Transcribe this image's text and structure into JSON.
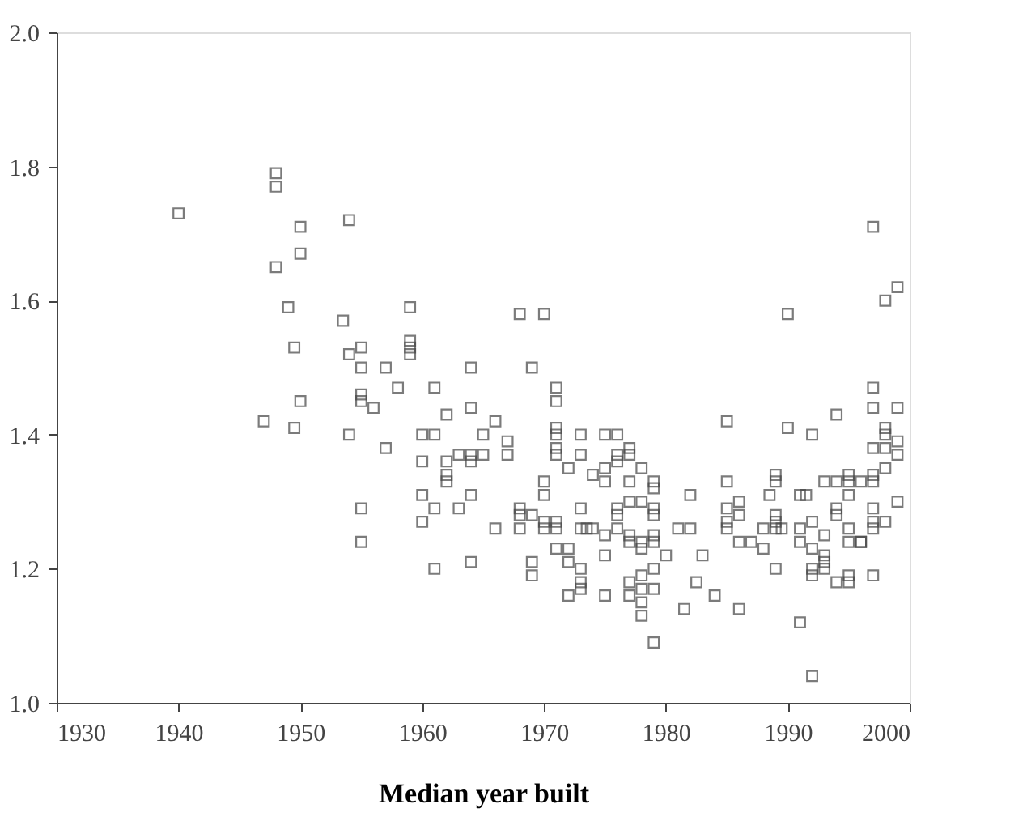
{
  "chart_data": {
    "type": "scatter",
    "xlabel": "Median year built",
    "marker": "square",
    "grid": false,
    "legend": false,
    "xlim": [
      1930,
      2000
    ],
    "ylim": [
      1.0,
      2.0
    ],
    "xticks": [
      1930,
      1940,
      1950,
      1960,
      1970,
      1980,
      1990,
      2000
    ],
    "yticks": [
      {
        "value": 1.0,
        "label": "1.0"
      },
      {
        "value": 1.2,
        "label": "1.2"
      },
      {
        "value": 1.4,
        "label": "1.4"
      },
      {
        "value": 1.6,
        "label": "1.6"
      },
      {
        "value": 1.8,
        "label": "1.8"
      },
      {
        "value": 2.0,
        "label": "2.0"
      }
    ],
    "series": [
      {
        "color": "#444444",
        "x": [
          1940,
          1948,
          1948,
          1948,
          1949,
          1949.5,
          1950,
          1950,
          1950,
          1947,
          1949.5,
          1954,
          1953.5,
          1954,
          1955,
          1955,
          1954,
          1955,
          1955,
          1956,
          1955,
          1955,
          1957,
          1958,
          1957,
          1959,
          1959,
          1959,
          1959,
          1961,
          1960,
          1961,
          1960,
          1960,
          1960,
          1961,
          1961,
          1962,
          1962,
          1962,
          1962,
          1963,
          1963,
          1964,
          1964,
          1964,
          1964,
          1964,
          1964,
          1965,
          1965,
          1966,
          1966,
          1967,
          1967,
          1968,
          1968,
          1968,
          1968,
          1969,
          1969,
          1969,
          1969,
          1970,
          1970,
          1970,
          1970,
          1970,
          1971,
          1971,
          1971,
          1971,
          1971,
          1971,
          1971,
          1971,
          1971,
          1972,
          1972,
          1972,
          1972,
          1973,
          1973,
          1973,
          1973,
          1973,
          1973,
          1973,
          1973.5,
          1974,
          1974,
          1975,
          1975,
          1975,
          1975,
          1975,
          1975,
          1976,
          1976,
          1976,
          1976,
          1976,
          1976,
          1977,
          1977,
          1977,
          1977,
          1977,
          1977,
          1977,
          1977,
          1978,
          1978,
          1978,
          1978,
          1978,
          1978,
          1978,
          1978,
          1979,
          1979,
          1979,
          1979,
          1979,
          1979,
          1979,
          1979,
          1979,
          1980,
          1981,
          1981.5,
          1982,
          1982,
          1982.5,
          1983,
          1984,
          1985,
          1985,
          1985,
          1985,
          1985,
          1986,
          1986,
          1986,
          1986,
          1987,
          1988,
          1988,
          1988.5,
          1989,
          1989,
          1989,
          1989,
          1989,
          1989,
          1989.5,
          1990,
          1990,
          1991,
          1991.5,
          1991,
          1991,
          1991,
          1992,
          1992,
          1992,
          1992,
          1992,
          1992,
          1993,
          1993,
          1993,
          1993,
          1993,
          1994,
          1994,
          1994,
          1994,
          1994,
          1995,
          1995,
          1995,
          1995,
          1995,
          1995,
          1995,
          1996,
          1996,
          1996,
          1997,
          1997,
          1997,
          1997,
          1997,
          1997,
          1997,
          1997,
          1997,
          1997,
          1998,
          1998,
          1998,
          1998,
          1998,
          1998,
          1999,
          1999,
          1999,
          1999,
          1999
        ],
        "values": [
          1.73,
          1.79,
          1.77,
          1.65,
          1.59,
          1.53,
          1.71,
          1.67,
          1.45,
          1.42,
          1.41,
          1.72,
          1.57,
          1.52,
          1.53,
          1.5,
          1.4,
          1.46,
          1.45,
          1.44,
          1.29,
          1.24,
          1.5,
          1.47,
          1.38,
          1.59,
          1.54,
          1.53,
          1.52,
          1.47,
          1.4,
          1.4,
          1.36,
          1.31,
          1.27,
          1.29,
          1.2,
          1.43,
          1.36,
          1.34,
          1.33,
          1.37,
          1.29,
          1.5,
          1.44,
          1.37,
          1.36,
          1.31,
          1.21,
          1.4,
          1.37,
          1.42,
          1.26,
          1.39,
          1.37,
          1.58,
          1.29,
          1.28,
          1.26,
          1.28,
          1.5,
          1.21,
          1.19,
          1.58,
          1.33,
          1.31,
          1.27,
          1.26,
          1.47,
          1.45,
          1.41,
          1.4,
          1.38,
          1.37,
          1.27,
          1.26,
          1.23,
          1.35,
          1.23,
          1.21,
          1.16,
          1.4,
          1.37,
          1.29,
          1.26,
          1.2,
          1.18,
          1.17,
          1.26,
          1.34,
          1.26,
          1.4,
          1.35,
          1.33,
          1.25,
          1.22,
          1.16,
          1.4,
          1.37,
          1.36,
          1.29,
          1.28,
          1.26,
          1.38,
          1.37,
          1.33,
          1.3,
          1.25,
          1.24,
          1.18,
          1.16,
          1.35,
          1.3,
          1.24,
          1.23,
          1.19,
          1.17,
          1.15,
          1.13,
          1.33,
          1.32,
          1.29,
          1.28,
          1.25,
          1.24,
          1.2,
          1.17,
          1.09,
          1.22,
          1.26,
          1.14,
          1.31,
          1.26,
          1.18,
          1.22,
          1.16,
          1.42,
          1.33,
          1.29,
          1.27,
          1.26,
          1.3,
          1.28,
          1.24,
          1.14,
          1.24,
          1.26,
          1.23,
          1.31,
          1.34,
          1.33,
          1.28,
          1.27,
          1.26,
          1.2,
          1.26,
          1.58,
          1.41,
          1.31,
          1.31,
          1.26,
          1.24,
          1.12,
          1.4,
          1.27,
          1.23,
          1.2,
          1.19,
          1.04,
          1.33,
          1.25,
          1.22,
          1.21,
          1.2,
          1.43,
          1.33,
          1.29,
          1.28,
          1.18,
          1.34,
          1.33,
          1.31,
          1.26,
          1.24,
          1.19,
          1.18,
          1.33,
          1.24,
          1.24,
          1.71,
          1.47,
          1.44,
          1.38,
          1.34,
          1.33,
          1.29,
          1.27,
          1.26,
          1.19,
          1.6,
          1.41,
          1.4,
          1.38,
          1.35,
          1.27,
          1.62,
          1.44,
          1.39,
          1.37,
          1.3
        ]
      }
    ]
  }
}
